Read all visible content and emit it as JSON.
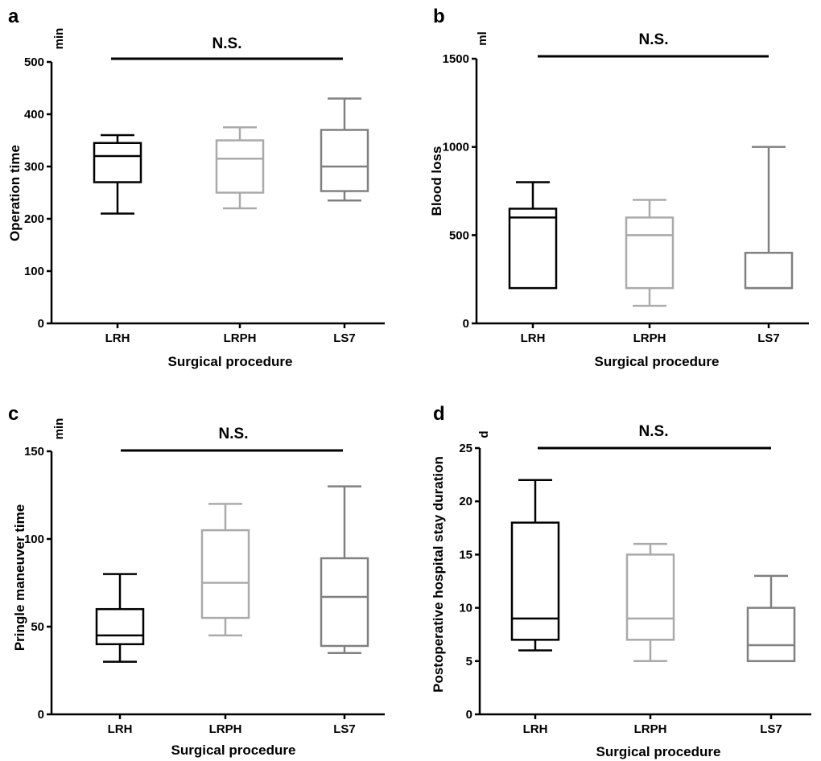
{
  "chart_data": [
    {
      "type": "box",
      "panel": "a",
      "ylabel": "Operation time",
      "unit": "min",
      "xlabel": "Surgical procedure",
      "categories": [
        "LRH",
        "LRPH",
        "LS7"
      ],
      "ylim": [
        0,
        500
      ],
      "yticks": [
        0,
        100,
        200,
        300,
        400,
        500
      ],
      "significance": "N.S.",
      "colors": [
        "#000000",
        "#aaaaaa",
        "#808080"
      ],
      "boxes": [
        {
          "min": 210,
          "q1": 270,
          "median": 320,
          "q3": 345,
          "max": 360
        },
        {
          "min": 220,
          "q1": 250,
          "median": 315,
          "q3": 350,
          "max": 375
        },
        {
          "min": 235,
          "q1": 253,
          "median": 300,
          "q3": 370,
          "max": 430
        }
      ]
    },
    {
      "type": "box",
      "panel": "b",
      "ylabel": "Blood loss",
      "unit": "ml",
      "xlabel": "Surgical procedure",
      "categories": [
        "LRH",
        "LRPH",
        "LS7"
      ],
      "ylim": [
        0,
        1500
      ],
      "yticks": [
        0,
        500,
        1000,
        1500
      ],
      "significance": "N.S.",
      "colors": [
        "#000000",
        "#aaaaaa",
        "#808080"
      ],
      "boxes": [
        {
          "min": 200,
          "q1": 200,
          "median": 600,
          "q3": 650,
          "max": 800
        },
        {
          "min": 100,
          "q1": 200,
          "median": 500,
          "q3": 600,
          "max": 700
        },
        {
          "min": 200,
          "q1": 200,
          "median": 200,
          "q3": 400,
          "max": 1000
        }
      ]
    },
    {
      "type": "box",
      "panel": "c",
      "ylabel": "Pringle maneuver time",
      "unit": "min",
      "xlabel": "Surgical procedure",
      "categories": [
        "LRH",
        "LRPH",
        "LS7"
      ],
      "ylim": [
        0,
        150
      ],
      "yticks": [
        0,
        50,
        100,
        150
      ],
      "significance": "N.S.",
      "colors": [
        "#000000",
        "#aaaaaa",
        "#808080"
      ],
      "boxes": [
        {
          "min": 30,
          "q1": 40,
          "median": 45,
          "q3": 60,
          "max": 80
        },
        {
          "min": 45,
          "q1": 55,
          "median": 75,
          "q3": 105,
          "max": 120
        },
        {
          "min": 35,
          "q1": 39,
          "median": 67,
          "q3": 89,
          "max": 130
        }
      ]
    },
    {
      "type": "box",
      "panel": "d",
      "ylabel": "Postoperative hospital stay duration",
      "unit": "d",
      "xlabel": "Surgical procedure",
      "categories": [
        "LRH",
        "LRPH",
        "LS7"
      ],
      "ylim": [
        0,
        25
      ],
      "yticks": [
        0,
        5,
        10,
        15,
        20,
        25
      ],
      "significance": "N.S.",
      "colors": [
        "#000000",
        "#aaaaaa",
        "#808080"
      ],
      "boxes": [
        {
          "min": 6,
          "q1": 7,
          "median": 9,
          "q3": 18,
          "max": 22
        },
        {
          "min": 5,
          "q1": 7,
          "median": 9,
          "q3": 15,
          "max": 16
        },
        {
          "min": 5,
          "q1": 5,
          "median": 6.5,
          "q3": 10,
          "max": 13
        }
      ]
    }
  ]
}
